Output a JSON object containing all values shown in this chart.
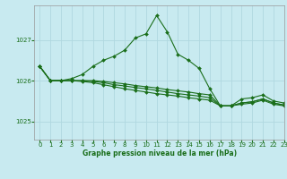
{
  "title": "Graphe pression niveau de la mer (hPa)",
  "bg_color": "#c8eaf0",
  "grid_color": "#b0d8e0",
  "line_color": "#1a6e1a",
  "marker_color": "#1a6e1a",
  "xlim": [
    -0.5,
    23
  ],
  "ylim": [
    1024.55,
    1027.85
  ],
  "yticks": [
    1025,
    1026,
    1027
  ],
  "xticks": [
    0,
    1,
    2,
    3,
    4,
    5,
    6,
    7,
    8,
    9,
    10,
    11,
    12,
    13,
    14,
    15,
    16,
    17,
    18,
    19,
    20,
    21,
    22,
    23
  ],
  "series": [
    [
      1026.35,
      1026.0,
      1026.0,
      1026.05,
      1026.15,
      1026.35,
      1026.5,
      1026.6,
      1026.75,
      1027.05,
      1027.15,
      1027.6,
      1027.2,
      1026.65,
      1026.5,
      1026.3,
      1025.8,
      1025.38,
      1025.38,
      1025.55,
      1025.58,
      1025.65,
      1025.5,
      1025.45
    ],
    [
      1026.35,
      1026.0,
      1026.0,
      1026.0,
      1026.0,
      1026.0,
      1025.98,
      1025.95,
      1025.92,
      1025.88,
      1025.85,
      1025.82,
      1025.78,
      1025.75,
      1025.72,
      1025.68,
      1025.65,
      1025.38,
      1025.38,
      1025.45,
      1025.48,
      1025.55,
      1025.45,
      1025.4
    ],
    [
      1026.35,
      1026.0,
      1026.0,
      1026.0,
      1026.0,
      1025.98,
      1025.95,
      1025.9,
      1025.87,
      1025.83,
      1025.8,
      1025.76,
      1025.72,
      1025.68,
      1025.65,
      1025.62,
      1025.58,
      1025.38,
      1025.38,
      1025.45,
      1025.48,
      1025.55,
      1025.45,
      1025.4
    ],
    [
      1026.35,
      1026.0,
      1026.0,
      1026.0,
      1025.98,
      1025.95,
      1025.9,
      1025.85,
      1025.8,
      1025.76,
      1025.72,
      1025.68,
      1025.65,
      1025.62,
      1025.58,
      1025.55,
      1025.52,
      1025.38,
      1025.38,
      1025.42,
      1025.45,
      1025.52,
      1025.42,
      1025.38
    ]
  ],
  "figsize": [
    3.2,
    2.0
  ],
  "dpi": 100,
  "title_fontsize": 5.5,
  "tick_fontsize": 5,
  "linewidth": 0.8,
  "markersize": 2.0
}
